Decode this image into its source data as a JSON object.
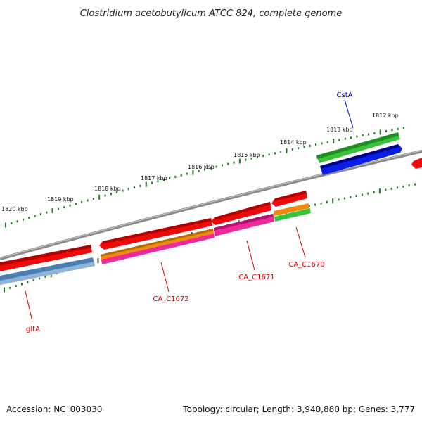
{
  "title": "Clostridium acetobutylicum ATCC 824, complete genome",
  "footer": {
    "accession": "Accession: NC_003030",
    "topology": "Topology: circular; Length: 3,940,880 bp; Genes: 3,777"
  },
  "colors": {
    "backbone": "#8a8a8a",
    "tick": "#1d7a1d",
    "label_red": "#cc0000",
    "label_blue": "#0000cc",
    "gene_red": "#ee0a0a",
    "gene_green": "#39c23a",
    "gene_blue": "#0a1ee6",
    "gene_steel": "#4a7fb3",
    "gene_orange": "#f08a0a",
    "gene_pink": "#ee2a9a"
  },
  "scale_labels": [
    "1820 kbp",
    "1819 kbp",
    "1818 kbp",
    "1817 kbp",
    "1816 kbp",
    "1815 kbp",
    "1814 kbp",
    "1813 kbp",
    "1812 kbp"
  ],
  "gene_labels": [
    {
      "text": "CstA",
      "color": "blue"
    },
    {
      "text": "CA_C1670",
      "color": "red"
    },
    {
      "text": "CA_C1671",
      "color": "red"
    },
    {
      "text": "CA_C1672",
      "color": "red"
    },
    {
      "text": "gltA",
      "color": "red"
    }
  ]
}
